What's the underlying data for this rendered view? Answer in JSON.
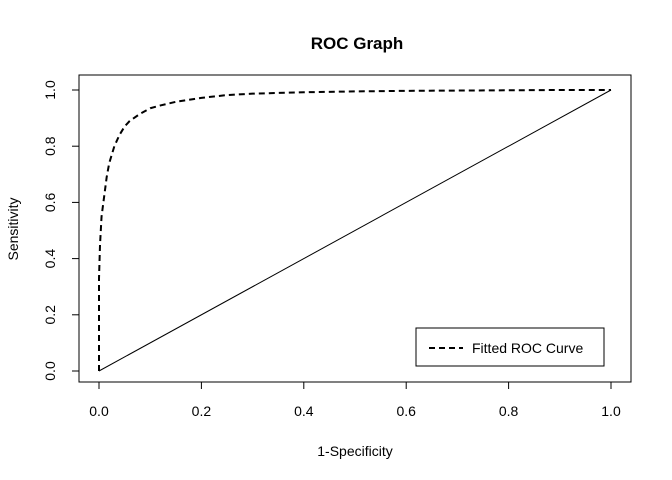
{
  "chart_data": {
    "type": "line",
    "title": "ROC Graph",
    "xlabel": "1-Specificity",
    "ylabel": "Sensitivity",
    "xlim": [
      0,
      1
    ],
    "ylim": [
      0,
      1
    ],
    "x_ticks": [
      "0.0",
      "0.2",
      "0.4",
      "0.6",
      "0.8",
      "1.0"
    ],
    "y_ticks": [
      "0.0",
      "0.2",
      "0.4",
      "0.6",
      "0.8",
      "1.0"
    ],
    "grid": false,
    "legend_position": "bottom-right",
    "series": [
      {
        "name": "Fitted ROC Curve",
        "style": "dashed",
        "color": "#000000",
        "x": [
          0.0,
          0.0,
          0.002,
          0.005,
          0.01,
          0.015,
          0.02,
          0.03,
          0.04,
          0.05,
          0.06,
          0.08,
          0.1,
          0.12,
          0.15,
          0.2,
          0.25,
          0.3,
          0.4,
          0.5,
          0.6,
          0.7,
          0.8,
          0.9,
          1.0
        ],
        "y": [
          0.0,
          0.33,
          0.45,
          0.55,
          0.62,
          0.69,
          0.74,
          0.8,
          0.84,
          0.87,
          0.89,
          0.915,
          0.935,
          0.945,
          0.958,
          0.972,
          0.982,
          0.987,
          0.992,
          0.995,
          0.997,
          0.998,
          0.999,
          1.0,
          1.0
        ]
      },
      {
        "name": "",
        "style": "solid",
        "color": "#000000",
        "x": [
          0.0,
          1.0
        ],
        "y": [
          0.0,
          1.0
        ]
      }
    ],
    "legend": [
      {
        "label": "Fitted ROC Curve",
        "style": "dashed"
      }
    ]
  }
}
